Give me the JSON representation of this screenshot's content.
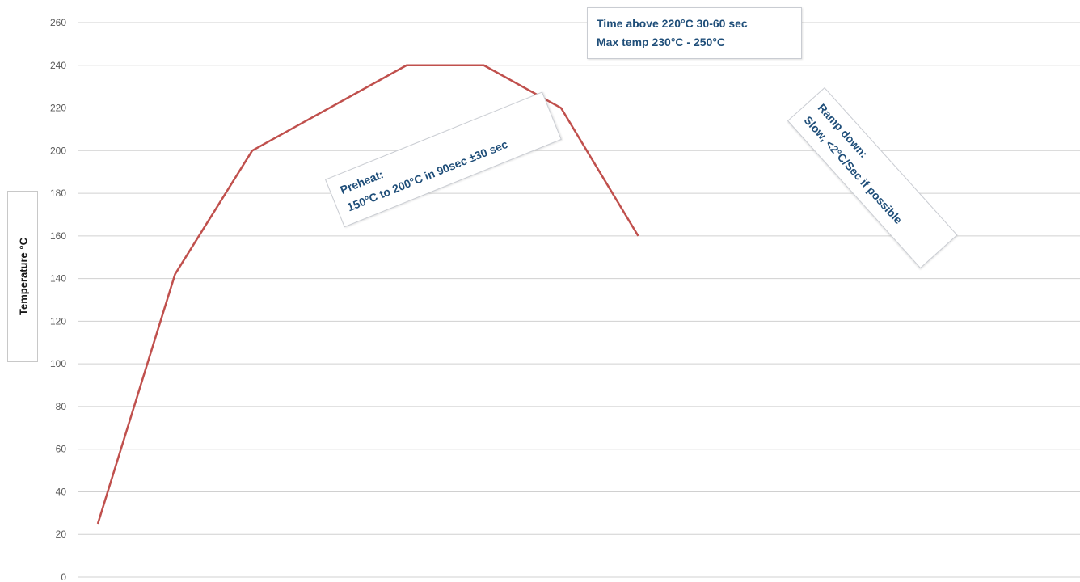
{
  "chart_data": {
    "type": "line",
    "xlabel": "",
    "ylabel": "Temperature °C",
    "ylim": [
      0,
      260
    ],
    "yticks": [
      0,
      20,
      40,
      60,
      80,
      100,
      120,
      140,
      160,
      180,
      200,
      220,
      240,
      260
    ],
    "grid": true,
    "x": [
      0,
      1,
      2,
      3,
      4,
      5,
      6,
      7,
      8
    ],
    "series": [
      {
        "values": [
          25,
          142,
          200,
          220,
          240,
          240,
          220,
          160,
          null
        ],
        "color": "#c0504d"
      }
    ],
    "annotations": {
      "peak": [
        "Time above 220°C 30-60 sec",
        "Max temp 230°C -  250°C"
      ],
      "preheat": [
        "Preheat:",
        "150°C to 200°C in 90sec ±30 sec"
      ],
      "ramp_down": [
        "Ramp down:",
        "Slow, <2°C/Sec if possible"
      ]
    }
  }
}
